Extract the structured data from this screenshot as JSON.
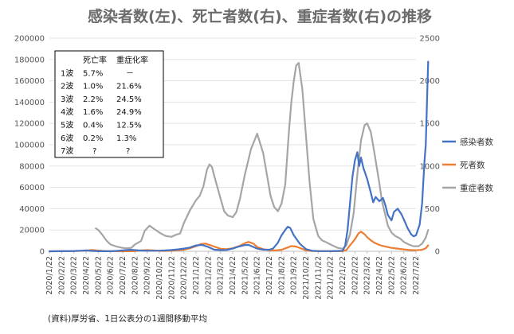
{
  "chart_data": {
    "type": "line",
    "title": "感染者数(左)、死亡者数(右)、重症者数(右)の推移",
    "source_note": "(資料)厚労省、1日公表分の1週間移動平均",
    "left_axis": {
      "ylim": [
        0,
        200000
      ],
      "ticks": [
        "0",
        "20000",
        "40000",
        "60000",
        "80000",
        "100000",
        "120000",
        "140000",
        "160000",
        "180000",
        "200000"
      ]
    },
    "right_axis": {
      "ylim": [
        0,
        2500
      ],
      "ticks": [
        "0",
        "500",
        "1000",
        "1500",
        "2000",
        "2500"
      ]
    },
    "x_ticks": [
      "2020/1/22",
      "2020/2/22",
      "2020/3/22",
      "2020/4/22",
      "2020/5/22",
      "2020/6/22",
      "2020/7/22",
      "2020/8/22",
      "2020/9/22",
      "2020/10/22",
      "2020/11/22",
      "2020/12/22",
      "2021/1/22",
      "2021/2/22",
      "2021/3/22",
      "2021/4/22",
      "2021/5/22",
      "2021/6/22",
      "2021/7/22",
      "2021/8/22",
      "2021/9/22",
      "2021/10/22",
      "2021/11/22",
      "2021/12/22",
      "2022/1/22",
      "2022/2/22",
      "2022/3/22",
      "2022/4/22",
      "2022/5/22",
      "2022/6/22",
      "2022/7/22"
    ],
    "series": [
      {
        "name": "感染者数",
        "axis": "left",
        "color": "#4472c4",
        "points": [
          [
            0,
            0
          ],
          [
            2,
            300
          ],
          [
            2.7,
            600
          ],
          [
            3,
            800
          ],
          [
            3.5,
            400
          ],
          [
            4,
            100
          ],
          [
            5,
            50
          ],
          [
            5.5,
            400
          ],
          [
            6,
            900
          ],
          [
            6.6,
            1400
          ],
          [
            7,
            1100
          ],
          [
            7.5,
            700
          ],
          [
            8,
            500
          ],
          [
            9,
            600
          ],
          [
            9.5,
            800
          ],
          [
            10,
            1200
          ],
          [
            10.5,
            1800
          ],
          [
            11,
            2500
          ],
          [
            11.5,
            3500
          ],
          [
            12,
            5500
          ],
          [
            12.5,
            6000
          ],
          [
            13,
            4000
          ],
          [
            13.5,
            1500
          ],
          [
            14,
            1100
          ],
          [
            14.5,
            1300
          ],
          [
            15,
            2500
          ],
          [
            15.5,
            4500
          ],
          [
            16,
            5800
          ],
          [
            16.3,
            6000
          ],
          [
            16.7,
            4000
          ],
          [
            17,
            2500
          ],
          [
            17.5,
            1500
          ],
          [
            18,
            1500
          ],
          [
            18.3,
            2500
          ],
          [
            18.7,
            8000
          ],
          [
            19,
            15000
          ],
          [
            19.3,
            20000
          ],
          [
            19.5,
            23000
          ],
          [
            19.7,
            22000
          ],
          [
            20,
            15000
          ],
          [
            20.5,
            7000
          ],
          [
            21,
            2000
          ],
          [
            21.5,
            500
          ],
          [
            22,
            200
          ],
          [
            23,
            150
          ],
          [
            23.5,
            300
          ],
          [
            24,
            500
          ],
          [
            24.2,
            5000
          ],
          [
            24.4,
            20000
          ],
          [
            24.6,
            45000
          ],
          [
            24.8,
            70000
          ],
          [
            25,
            85000
          ],
          [
            25.2,
            93000
          ],
          [
            25.35,
            80000
          ],
          [
            25.5,
            88000
          ],
          [
            25.7,
            78000
          ],
          [
            26,
            68000
          ],
          [
            26.3,
            55000
          ],
          [
            26.5,
            46000
          ],
          [
            26.7,
            51000
          ],
          [
            27,
            47000
          ],
          [
            27.3,
            50000
          ],
          [
            27.5,
            43000
          ],
          [
            27.7,
            34000
          ],
          [
            28,
            29000
          ],
          [
            28.2,
            37000
          ],
          [
            28.5,
            40000
          ],
          [
            28.8,
            35000
          ],
          [
            29,
            30000
          ],
          [
            29.3,
            22000
          ],
          [
            29.6,
            16000
          ],
          [
            29.8,
            14000
          ],
          [
            30,
            15000
          ],
          [
            30.3,
            25000
          ],
          [
            30.5,
            45000
          ],
          [
            30.7,
            85000
          ],
          [
            30.8,
            100000
          ],
          [
            30.9,
            140000
          ],
          [
            31,
            178000
          ]
        ]
      },
      {
        "name": "死者数",
        "axis": "right",
        "color": "#ed7d31",
        "points": [
          [
            0,
            0
          ],
          [
            2,
            2
          ],
          [
            3,
            8
          ],
          [
            3.5,
            15
          ],
          [
            4,
            8
          ],
          [
            4.6,
            3
          ],
          [
            5,
            1
          ],
          [
            6,
            0
          ],
          [
            7,
            2
          ],
          [
            7.5,
            10
          ],
          [
            8,
            14
          ],
          [
            8.5,
            10
          ],
          [
            9,
            6
          ],
          [
            9.5,
            5
          ],
          [
            10,
            7
          ],
          [
            10.5,
            12
          ],
          [
            11,
            18
          ],
          [
            11.5,
            35
          ],
          [
            12,
            60
          ],
          [
            12.4,
            85
          ],
          [
            12.8,
            90
          ],
          [
            13.2,
            70
          ],
          [
            13.7,
            45
          ],
          [
            14,
            30
          ],
          [
            14.5,
            25
          ],
          [
            15,
            35
          ],
          [
            15.5,
            60
          ],
          [
            16,
            95
          ],
          [
            16.3,
            110
          ],
          [
            16.7,
            90
          ],
          [
            17,
            50
          ],
          [
            17.5,
            25
          ],
          [
            18,
            12
          ],
          [
            18.5,
            10
          ],
          [
            19,
            18
          ],
          [
            19.5,
            45
          ],
          [
            19.8,
            62
          ],
          [
            20.2,
            55
          ],
          [
            20.7,
            28
          ],
          [
            21,
            10
          ],
          [
            21.5,
            3
          ],
          [
            22,
            1
          ],
          [
            23,
            1
          ],
          [
            24,
            2
          ],
          [
            24.3,
            15
          ],
          [
            24.6,
            70
          ],
          [
            25,
            140
          ],
          [
            25.3,
            210
          ],
          [
            25.5,
            230
          ],
          [
            25.8,
            200
          ],
          [
            26,
            165
          ],
          [
            26.3,
            130
          ],
          [
            26.6,
            100
          ],
          [
            27,
            75
          ],
          [
            27.5,
            55
          ],
          [
            28,
            40
          ],
          [
            28.5,
            32
          ],
          [
            29,
            22
          ],
          [
            29.5,
            15
          ],
          [
            30,
            12
          ],
          [
            30.5,
            18
          ],
          [
            30.8,
            35
          ],
          [
            31,
            70
          ]
        ]
      },
      {
        "name": "重症者数",
        "axis": "right",
        "color": "#a5a5a5",
        "points": [
          [
            3.8,
            270
          ],
          [
            4,
            250
          ],
          [
            4.3,
            200
          ],
          [
            4.7,
            120
          ],
          [
            5,
            80
          ],
          [
            5.5,
            55
          ],
          [
            6,
            40
          ],
          [
            6.3,
            35
          ],
          [
            6.7,
            40
          ],
          [
            7,
            80
          ],
          [
            7.5,
            120
          ],
          [
            7.8,
            240
          ],
          [
            8.2,
            300
          ],
          [
            8.5,
            270
          ],
          [
            9,
            220
          ],
          [
            9.5,
            180
          ],
          [
            10,
            170
          ],
          [
            10.3,
            190
          ],
          [
            10.7,
            210
          ],
          [
            11,
            330
          ],
          [
            11.5,
            480
          ],
          [
            12,
            600
          ],
          [
            12.3,
            650
          ],
          [
            12.6,
            760
          ],
          [
            12.9,
            960
          ],
          [
            13.1,
            1020
          ],
          [
            13.3,
            990
          ],
          [
            13.5,
            880
          ],
          [
            14,
            620
          ],
          [
            14.3,
            470
          ],
          [
            14.6,
            420
          ],
          [
            15,
            400
          ],
          [
            15.3,
            460
          ],
          [
            15.6,
            620
          ],
          [
            16,
            900
          ],
          [
            16.5,
            1200
          ],
          [
            17,
            1380
          ],
          [
            17.5,
            1150
          ],
          [
            17.8,
            900
          ],
          [
            18.1,
            650
          ],
          [
            18.4,
            520
          ],
          [
            18.7,
            470
          ],
          [
            19,
            560
          ],
          [
            19.3,
            780
          ],
          [
            19.6,
            1400
          ],
          [
            19.8,
            1750
          ],
          [
            20,
            2000
          ],
          [
            20.2,
            2180
          ],
          [
            20.4,
            2210
          ],
          [
            20.7,
            1900
          ],
          [
            21,
            1350
          ],
          [
            21.3,
            800
          ],
          [
            21.6,
            380
          ],
          [
            22,
            180
          ],
          [
            22.3,
            130
          ],
          [
            22.6,
            110
          ],
          [
            23,
            80
          ],
          [
            23.3,
            60
          ],
          [
            23.6,
            40
          ],
          [
            24,
            30
          ],
          [
            24.3,
            70
          ],
          [
            24.6,
            200
          ],
          [
            24.9,
            450
          ],
          [
            25.2,
            900
          ],
          [
            25.5,
            1300
          ],
          [
            25.8,
            1480
          ],
          [
            26,
            1500
          ],
          [
            26.3,
            1400
          ],
          [
            26.6,
            1150
          ],
          [
            27,
            800
          ],
          [
            27.2,
            600
          ],
          [
            27.4,
            480
          ],
          [
            27.7,
            300
          ],
          [
            28,
            220
          ],
          [
            28.3,
            180
          ],
          [
            28.7,
            150
          ],
          [
            29,
            110
          ],
          [
            29.4,
            80
          ],
          [
            29.8,
            60
          ],
          [
            30.2,
            60
          ],
          [
            30.5,
            90
          ],
          [
            30.8,
            160
          ],
          [
            31,
            250
          ]
        ]
      }
    ],
    "legend": {
      "position": "right"
    },
    "table": {
      "headers": [
        "",
        "死亡率",
        "重症化率"
      ],
      "rows": [
        [
          "1波",
          "5.7%",
          "－"
        ],
        [
          "2波",
          "1.0%",
          "21.6%"
        ],
        [
          "3波",
          "2.2%",
          "24.5%"
        ],
        [
          "4波",
          "1.6%",
          "24.9%"
        ],
        [
          "5波",
          "0.4%",
          "12.5%"
        ],
        [
          "6波",
          "0.2%",
          "1.3%"
        ],
        [
          "7波",
          "?",
          "?"
        ]
      ]
    }
  }
}
